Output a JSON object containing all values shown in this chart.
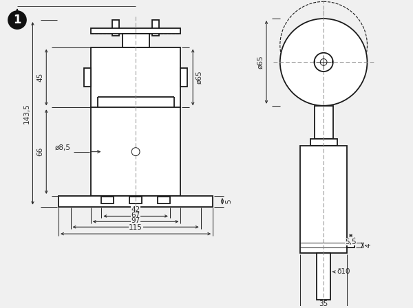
{
  "bg_color": "#f0f0f0",
  "line_color": "#1a1a1a",
  "dim_color": "#2a2a2a",
  "figsize": [
    6.0,
    4.48
  ],
  "dpi": 100,
  "annotations": {
    "diameter_65": "ø65",
    "diameter_85": "ø8,5",
    "diameter_10": "ð10",
    "dim_45": "45",
    "dim_66": "66",
    "dim_1435": "143,5",
    "dim_42": "42",
    "dim_67": "67",
    "dim_97": "97",
    "dim_115": "115",
    "dim_5": "5",
    "dim_55": "5,5",
    "dim_4": "4",
    "dim_35": "35"
  }
}
